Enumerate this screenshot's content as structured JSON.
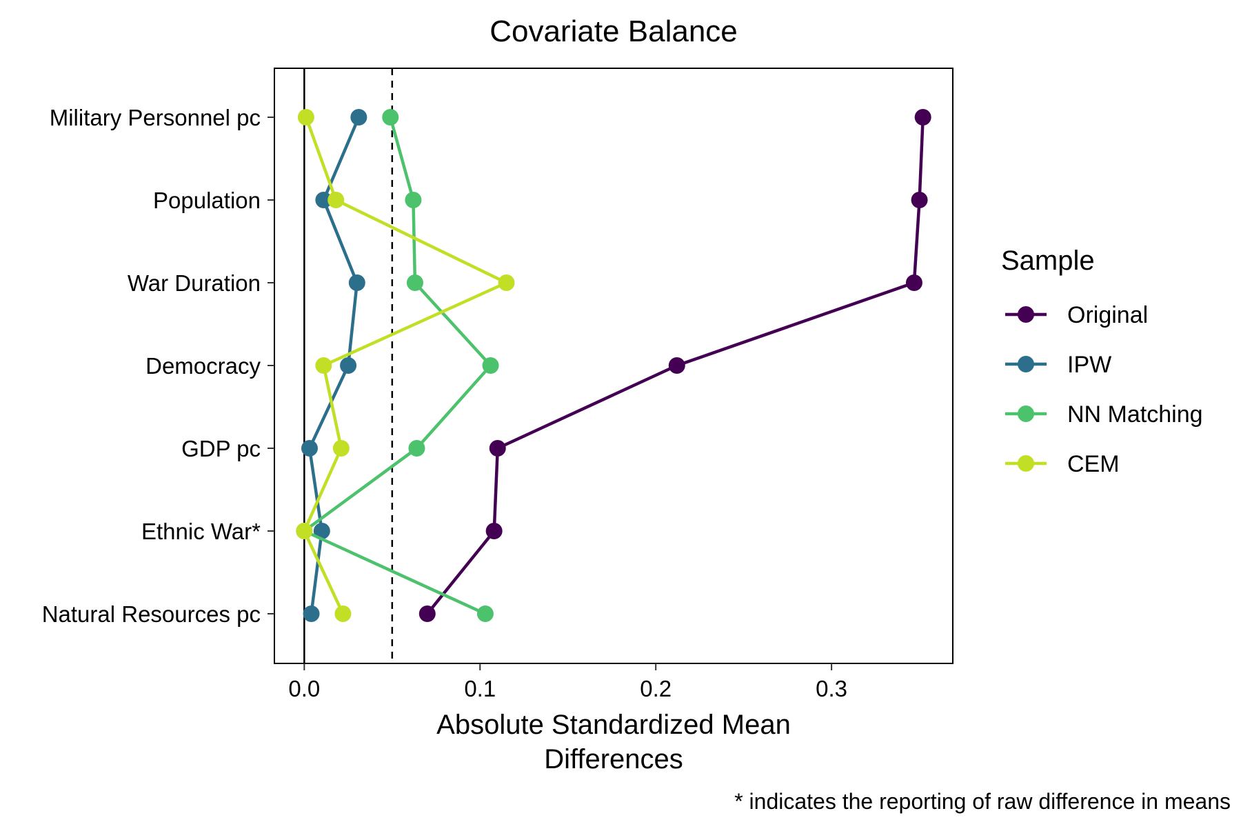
{
  "chart_data": {
    "type": "line",
    "title": "Covariate Balance",
    "xlabel": [
      "Absolute Standardized Mean",
      "Differences"
    ],
    "ylabel": "",
    "xlim": [
      -0.017,
      0.369
    ],
    "xticks": [
      0.0,
      0.1,
      0.2,
      0.3
    ],
    "xtick_labels": [
      "0.0",
      "0.1",
      "0.2",
      "0.3"
    ],
    "threshold": 0.05,
    "grid": false,
    "categories": [
      "Military Personnel pc",
      "Population",
      "War Duration",
      "Democracy",
      "GDP pc",
      "Ethnic War*",
      "Natural Resources pc"
    ],
    "series": [
      {
        "name": "Original",
        "color": "#440154",
        "values": [
          0.352,
          0.35,
          0.347,
          0.212,
          0.11,
          0.108,
          0.07
        ]
      },
      {
        "name": "IPW",
        "color": "#2b6f8c",
        "values": [
          0.031,
          0.011,
          0.03,
          0.025,
          0.003,
          0.01,
          0.004
        ]
      },
      {
        "name": "NN Matching",
        "color": "#4cc26c",
        "values": [
          0.049,
          0.062,
          0.063,
          0.106,
          0.064,
          0.0,
          0.103
        ]
      },
      {
        "name": "CEM",
        "color": "#c2de25",
        "values": [
          0.001,
          0.018,
          0.115,
          0.011,
          0.021,
          0.0,
          0.022
        ]
      }
    ],
    "legend": {
      "title": "Sample",
      "position": "right"
    },
    "caption": "* indicates the reporting of raw difference in means"
  }
}
